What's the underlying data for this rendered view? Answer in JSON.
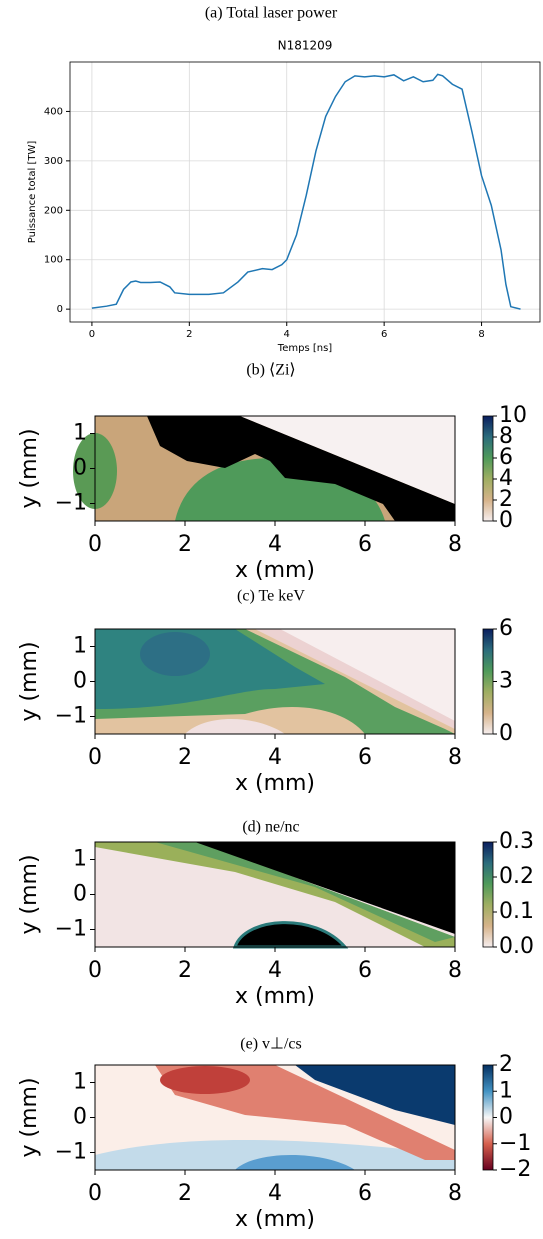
{
  "chart_data": [
    {
      "type": "line",
      "caption": "(a) Total laser power",
      "title": "N181209",
      "xlabel": "Temps [ns]",
      "ylabel": "Puissance total [TW]",
      "color": "#1f77b4",
      "grid": true,
      "x": [
        0,
        0.3,
        0.5,
        0.65,
        0.8,
        0.9,
        1.0,
        1.2,
        1.4,
        1.6,
        1.7,
        2.0,
        2.4,
        2.7,
        3.0,
        3.2,
        3.5,
        3.7,
        3.9,
        4.0,
        4.2,
        4.4,
        4.6,
        4.8,
        5.0,
        5.2,
        5.4,
        5.6,
        5.8,
        6.0,
        6.2,
        6.4,
        6.6,
        6.8,
        7.0,
        7.1,
        7.2,
        7.4,
        7.6,
        7.8,
        8.0,
        8.2,
        8.4,
        8.5,
        8.6,
        8.8
      ],
      "values": [
        2,
        6,
        10,
        40,
        55,
        57,
        54,
        54,
        55,
        45,
        33,
        30,
        30,
        33,
        55,
        75,
        82,
        80,
        90,
        100,
        150,
        230,
        320,
        390,
        430,
        460,
        472,
        470,
        472,
        470,
        474,
        462,
        470,
        460,
        463,
        475,
        472,
        455,
        445,
        360,
        270,
        210,
        120,
        50,
        5,
        0
      ],
      "xlim": [
        -0.45,
        9.2
      ],
      "ylim": [
        -26,
        500
      ],
      "xticks": [
        0,
        2,
        4,
        6,
        8
      ],
      "yticks": [
        0,
        100,
        200,
        300,
        400
      ]
    },
    {
      "type": "heatmap",
      "caption": "(b) ⟨Zi⟩",
      "xlabel": "x (mm)",
      "ylabel": "y (mm)",
      "xlim": [
        0,
        8
      ],
      "ylim": [
        -1.5,
        1.5
      ],
      "xticks": [
        0,
        2,
        4,
        6,
        8
      ],
      "yticks": [
        {
          "value": -1,
          "label": "−1"
        },
        0,
        1
      ],
      "colorbar": {
        "lim": [
          0,
          10
        ],
        "ticks": [
          0,
          2,
          4,
          6,
          8,
          10
        ],
        "colors": [
          "#f6eeee",
          "#d6b38a",
          "#9fae62",
          "#4f9a5a",
          "#2b6c7c",
          "#0a1e5e"
        ]
      }
    },
    {
      "type": "heatmap",
      "caption": "(c) Te keV",
      "xlabel": "x (mm)",
      "ylabel": "y (mm)",
      "xlim": [
        0,
        8
      ],
      "ylim": [
        -1.5,
        1.5
      ],
      "xticks": [
        0,
        2,
        4,
        6,
        8
      ],
      "yticks": [
        {
          "value": -1,
          "label": "−1"
        },
        0,
        1
      ],
      "colorbar": {
        "lim": [
          0,
          6
        ],
        "ticks": [
          0,
          3,
          6
        ],
        "colors": [
          "#f6eeee",
          "#d6b38a",
          "#9fae62",
          "#4f9a5a",
          "#2b6c7c",
          "#0a1e5e"
        ]
      }
    },
    {
      "type": "heatmap",
      "caption": "(d) ne/nc",
      "xlabel": "x (mm)",
      "ylabel": "y (mm)",
      "xlim": [
        0,
        8
      ],
      "ylim": [
        -1.5,
        1.5
      ],
      "xticks": [
        0,
        2,
        4,
        6,
        8
      ],
      "yticks": [
        {
          "value": -1,
          "label": "−1"
        },
        0,
        1
      ],
      "colorbar": {
        "lim": [
          0,
          0.3
        ],
        "ticks": [
          {
            "value": 0,
            "label": "0.0"
          },
          0.1,
          0.2,
          0.3
        ],
        "colors": [
          "#f6eeee",
          "#d6b38a",
          "#9fae62",
          "#4f9a5a",
          "#2b6c7c",
          "#0a1e5e"
        ]
      }
    },
    {
      "type": "heatmap",
      "caption": "(e) v⊥/cs",
      "xlabel": "x (mm)",
      "ylabel": "y (mm)",
      "xlim": [
        0,
        8
      ],
      "ylim": [
        -1.5,
        1.5
      ],
      "xticks": [
        0,
        2,
        4,
        6,
        8
      ],
      "yticks": [
        {
          "value": -1,
          "label": "−1"
        },
        0,
        1
      ],
      "colorbar": {
        "lim": [
          -2,
          2
        ],
        "ticks": [
          {
            "value": -2,
            "label": "−2"
          },
          {
            "value": -1,
            "label": "−1"
          },
          0,
          1,
          2
        ],
        "colors": [
          "#67001f",
          "#d6604d",
          "#f7f7f7",
          "#4393c3",
          "#053061"
        ]
      }
    }
  ]
}
